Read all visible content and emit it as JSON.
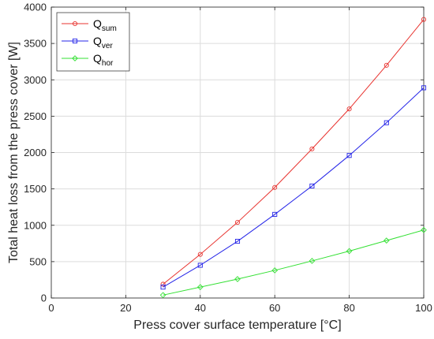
{
  "chart_data": {
    "type": "line",
    "xlabel": "Press cover surface temperature [°C]",
    "ylabel": "Total heat loss from the press cover [W]",
    "xlim": [
      0,
      100
    ],
    "ylim": [
      0,
      4000
    ],
    "xticks": [
      0,
      20,
      40,
      60,
      80,
      100
    ],
    "yticks": [
      0,
      500,
      1000,
      1500,
      2000,
      2500,
      3000,
      3500,
      4000
    ],
    "grid": true,
    "legend_position": "top-left",
    "x": [
      30,
      40,
      50,
      60,
      70,
      80,
      90,
      100
    ],
    "series": [
      {
        "name": "Q",
        "subscript": "sum",
        "color": "#e8332f",
        "marker": "circle",
        "values": [
          190,
          600,
          1040,
          1520,
          2050,
          2600,
          3200,
          3830
        ]
      },
      {
        "name": "Q",
        "subscript": "ver",
        "color": "#2525e8",
        "marker": "square",
        "values": [
          150,
          450,
          780,
          1150,
          1540,
          1960,
          2410,
          2890
        ]
      },
      {
        "name": "Q",
        "subscript": "hor",
        "color": "#33e033",
        "marker": "diamond",
        "values": [
          40,
          150,
          260,
          380,
          510,
          645,
          790,
          935
        ]
      }
    ]
  }
}
